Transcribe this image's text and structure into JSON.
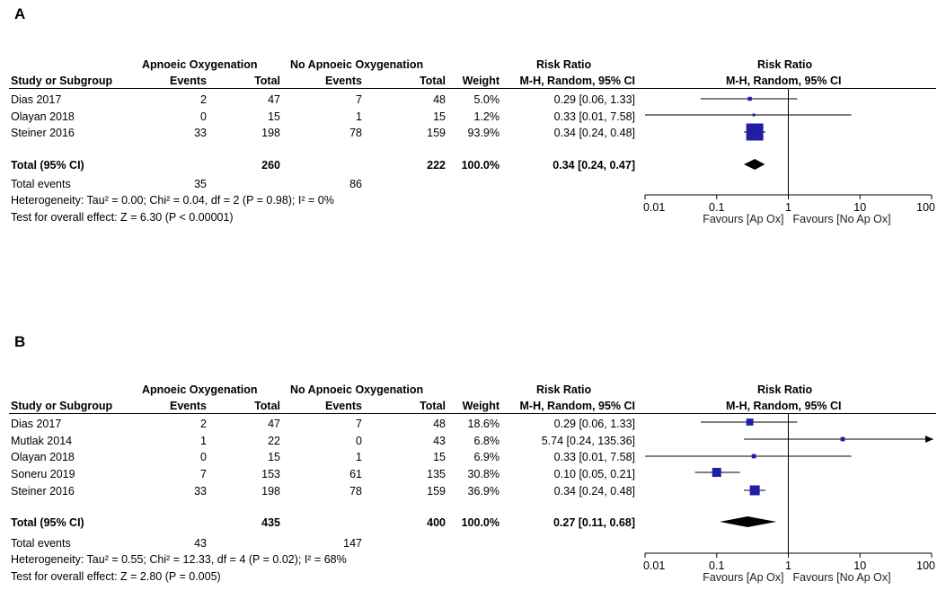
{
  "panels": [
    {
      "label": "A",
      "header": {
        "group1": "Apnoeic Oxygenation",
        "group2": "No Apnoeic Oxygenation",
        "risk_ratio_title": "Risk Ratio",
        "plot_title": "Risk Ratio",
        "col_study": "Study or Subgroup",
        "col_events1": "Events",
        "col_total1": "Total",
        "col_events2": "Events",
        "col_total2": "Total",
        "col_weight": "Weight",
        "col_method": "M-H, Random, 95% CI",
        "plot_method": "M-H, Random, 95% CI"
      },
      "studies": [
        {
          "name": "Dias 2017",
          "events1": "2",
          "total1": "47",
          "events2": "7",
          "total2": "48",
          "weight": "5.0%",
          "ci_text": "0.29 [0.06, 1.33]"
        },
        {
          "name": "Olayan 2018",
          "events1": "0",
          "total1": "15",
          "events2": "1",
          "total2": "15",
          "weight": "1.2%",
          "ci_text": "0.33 [0.01, 7.58]"
        },
        {
          "name": "Steiner 2016",
          "events1": "33",
          "total1": "198",
          "events2": "78",
          "total2": "159",
          "weight": "93.9%",
          "ci_text": "0.34 [0.24, 0.48]"
        }
      ],
      "total": {
        "label": "Total (95% CI)",
        "total1": "260",
        "total2": "222",
        "weight": "100.0%",
        "ci_text": "0.34 [0.24, 0.47]"
      },
      "total_events": {
        "label": "Total events",
        "events1": "35",
        "events2": "86"
      },
      "heterogeneity": "Heterogeneity: Tau² = 0.00; Chi² = 0.04, df = 2 (P = 0.98); I² = 0%",
      "overall_effect": "Test for overall effect: Z = 6.30 (P < 0.00001)",
      "axis": {
        "ticks": [
          "0.01",
          "0.1",
          "1",
          "10",
          "100"
        ],
        "favours_left": "Favours [Ap Ox]",
        "favours_right": "Favours [No Ap Ox]"
      }
    },
    {
      "label": "B",
      "header": {
        "group1": "Apnoeic Oxygenation",
        "group2": "No Apnoeic Oxygenation",
        "risk_ratio_title": "Risk Ratio",
        "plot_title": "Risk Ratio",
        "col_study": "Study or Subgroup",
        "col_events1": "Events",
        "col_total1": "Total",
        "col_events2": "Events",
        "col_total2": "Total",
        "col_weight": "Weight",
        "col_method": "M-H, Random, 95% CI",
        "plot_method": "M-H, Random, 95% CI"
      },
      "studies": [
        {
          "name": "Dias 2017",
          "events1": "2",
          "total1": "47",
          "events2": "7",
          "total2": "48",
          "weight": "18.6%",
          "ci_text": "0.29 [0.06, 1.33]"
        },
        {
          "name": "Mutlak 2014",
          "events1": "1",
          "total1": "22",
          "events2": "0",
          "total2": "43",
          "weight": "6.8%",
          "ci_text": "5.74 [0.24, 135.36]"
        },
        {
          "name": "Olayan 2018",
          "events1": "0",
          "total1": "15",
          "events2": "1",
          "total2": "15",
          "weight": "6.9%",
          "ci_text": "0.33 [0.01, 7.58]"
        },
        {
          "name": "Soneru 2019",
          "events1": "7",
          "total1": "153",
          "events2": "61",
          "total2": "135",
          "weight": "30.8%",
          "ci_text": "0.10 [0.05, 0.21]"
        },
        {
          "name": "Steiner 2016",
          "events1": "33",
          "total1": "198",
          "events2": "78",
          "total2": "159",
          "weight": "36.9%",
          "ci_text": "0.34 [0.24, 0.48]"
        }
      ],
      "total": {
        "label": "Total (95% CI)",
        "total1": "435",
        "total2": "400",
        "weight": "100.0%",
        "ci_text": "0.27 [0.11, 0.68]"
      },
      "total_events": {
        "label": "Total events",
        "events1": "43",
        "events2": "147"
      },
      "heterogeneity": "Heterogeneity: Tau² = 0.55; Chi² = 12.33, df = 4 (P = 0.02); I² = 68%",
      "overall_effect": "Test for overall effect: Z = 2.80 (P = 0.005)",
      "axis": {
        "ticks": [
          "0.01",
          "0.1",
          "1",
          "10",
          "100"
        ],
        "favours_left": "Favours [Ap Ox]",
        "favours_right": "Favours [No Ap Ox]"
      }
    }
  ],
  "chart_data": [
    {
      "type": "forest",
      "panel": "A",
      "title": "Risk Ratio",
      "xscale": "log",
      "xlim": [
        0.01,
        100
      ],
      "xticks": [
        0.01,
        0.1,
        1,
        10,
        100
      ],
      "xlabel_left": "Favours [Ap Ox]",
      "xlabel_right": "Favours [No Ap Ox]",
      "studies": [
        {
          "name": "Dias 2017",
          "rr": 0.29,
          "lo": 0.06,
          "hi": 1.33,
          "weight": 5.0
        },
        {
          "name": "Olayan 2018",
          "rr": 0.33,
          "lo": 0.01,
          "hi": 7.58,
          "weight": 1.2
        },
        {
          "name": "Steiner 2016",
          "rr": 0.34,
          "lo": 0.24,
          "hi": 0.48,
          "weight": 93.9
        }
      ],
      "pooled": {
        "rr": 0.34,
        "lo": 0.24,
        "hi": 0.47
      },
      "marker_color": "#1f1fa5"
    },
    {
      "type": "forest",
      "panel": "B",
      "title": "Risk Ratio",
      "xscale": "log",
      "xlim": [
        0.01,
        100
      ],
      "xticks": [
        0.01,
        0.1,
        1,
        10,
        100
      ],
      "xlabel_left": "Favours [Ap Ox]",
      "xlabel_right": "Favours [No Ap Ox]",
      "studies": [
        {
          "name": "Dias 2017",
          "rr": 0.29,
          "lo": 0.06,
          "hi": 1.33,
          "weight": 18.6
        },
        {
          "name": "Mutlak 2014",
          "rr": 5.74,
          "lo": 0.24,
          "hi": 135.36,
          "weight": 6.8
        },
        {
          "name": "Olayan 2018",
          "rr": 0.33,
          "lo": 0.01,
          "hi": 7.58,
          "weight": 6.9
        },
        {
          "name": "Soneru 2019",
          "rr": 0.1,
          "lo": 0.05,
          "hi": 0.21,
          "weight": 30.8
        },
        {
          "name": "Steiner 2016",
          "rr": 0.34,
          "lo": 0.24,
          "hi": 0.48,
          "weight": 36.9
        }
      ],
      "pooled": {
        "rr": 0.27,
        "lo": 0.11,
        "hi": 0.68
      },
      "marker_color": "#1f1fa5"
    }
  ]
}
